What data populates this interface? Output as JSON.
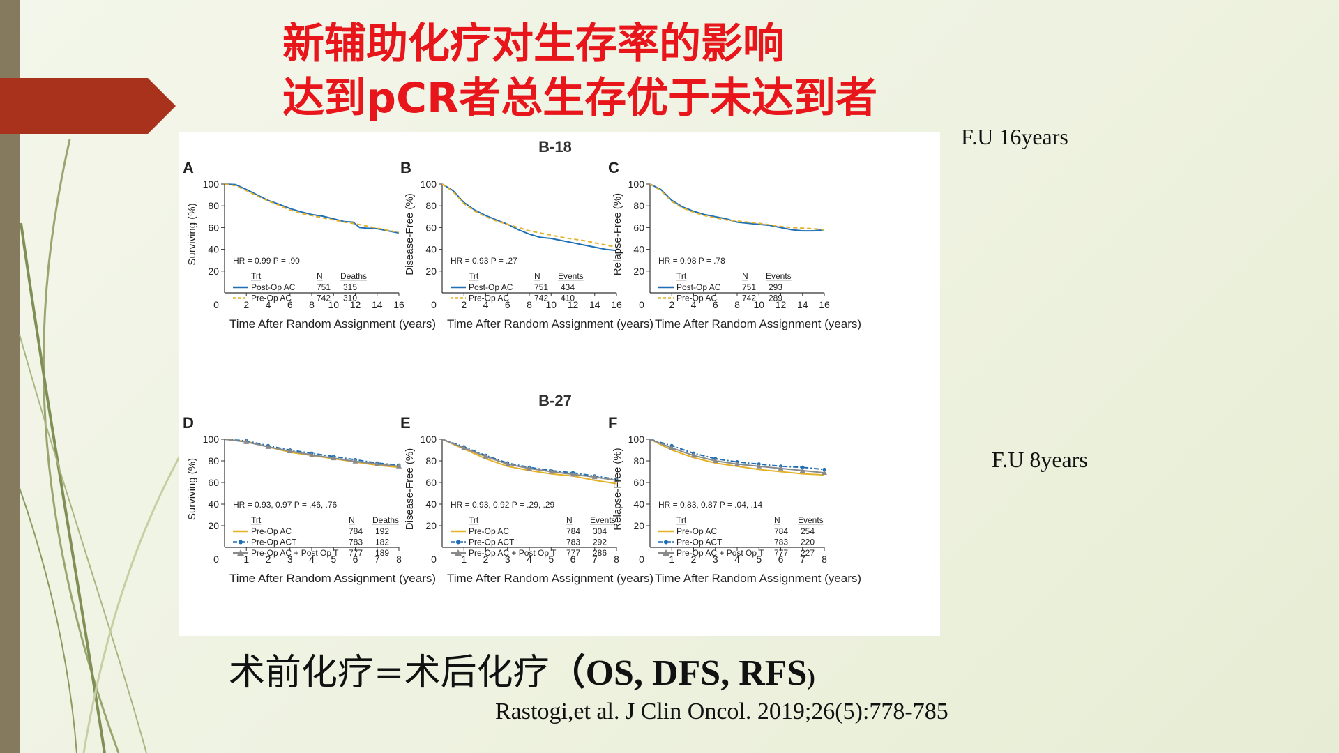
{
  "slide": {
    "title_line1": "新辅助化疗对生存率的影响",
    "title_line2": "达到pCR者总生存优于未达到者",
    "fu_16": "F.U  16years",
    "fu_8": "F.U  8years",
    "conclusion_cn": "术前化疗=术后化疗",
    "conclusion_open": "（",
    "conclusion_en": "OS, DFS, RFS",
    "conclusion_close": ")",
    "citation": "Rastogi,et al. J Clin Oncol. 2019;26(5):778-785"
  },
  "figure": {
    "trial_top": "B-18",
    "trial_bottom": "B-27"
  },
  "chart_data": [
    {
      "type": "line",
      "panel": "A",
      "trial": "B-18",
      "ylabel": "Surviving (%)",
      "xlabel": "Time After Random Assignment (years)",
      "xlim": [
        0,
        16
      ],
      "ylim": [
        0,
        100
      ],
      "xticks": [
        "0",
        "2",
        "4",
        "6",
        "8",
        "10",
        "12",
        "14",
        "16"
      ],
      "yticks": [
        "20",
        "40",
        "60",
        "80",
        "100"
      ],
      "stats": "HR = 0.99   P = .90",
      "legend": {
        "headers": [
          "Trt",
          "N",
          "Deaths"
        ],
        "rows": [
          [
            "Post-Op AC",
            "751",
            "315"
          ],
          [
            "Pre-Op AC",
            "742",
            "310"
          ]
        ]
      },
      "series": [
        {
          "name": "Post-Op AC",
          "color": "#1f6fb5",
          "style": "solid",
          "x": [
            0,
            1,
            2,
            3,
            4,
            5,
            6,
            7,
            8,
            9,
            10,
            11,
            11.8,
            12.4,
            13,
            14,
            15,
            16
          ],
          "y": [
            100,
            99.5,
            95,
            90,
            85,
            81.5,
            77.5,
            74.5,
            72,
            70.5,
            68,
            65.5,
            65,
            60,
            59.5,
            59,
            57,
            55
          ]
        },
        {
          "name": "Pre-Op AC",
          "color": "#e3b228",
          "style": "dashed",
          "x": [
            0,
            1,
            2,
            3,
            4,
            5,
            6,
            7,
            8,
            9,
            10,
            11,
            12,
            13,
            14,
            15,
            16
          ],
          "y": [
            100,
            98.5,
            94,
            89,
            84.5,
            80.5,
            76,
            73,
            71,
            69,
            67,
            65,
            63.5,
            61.5,
            59.5,
            57.5,
            55.5
          ]
        }
      ]
    },
    {
      "type": "line",
      "panel": "B",
      "trial": "B-18",
      "ylabel": "Disease-Free (%)",
      "xlabel": "Time After Random Assignment (years)",
      "xlim": [
        0,
        16
      ],
      "ylim": [
        0,
        100
      ],
      "xticks": [
        "0",
        "2",
        "4",
        "6",
        "8",
        "10",
        "12",
        "14",
        "16"
      ],
      "yticks": [
        "20",
        "40",
        "60",
        "80",
        "100"
      ],
      "stats": "HR = 0.93   P = .27",
      "legend": {
        "headers": [
          "Trt",
          "N",
          "Events"
        ],
        "rows": [
          [
            "Post-Op AC",
            "751",
            "434"
          ],
          [
            "Pre-Op AC",
            "742",
            "410"
          ]
        ]
      },
      "series": [
        {
          "name": "Post-Op AC",
          "color": "#1f6fb5",
          "style": "solid",
          "x": [
            0,
            1,
            2,
            3,
            4,
            5,
            6,
            7,
            8,
            9,
            10,
            11,
            12,
            13,
            14,
            15,
            16
          ],
          "y": [
            100,
            94,
            83,
            76,
            71,
            67,
            63,
            58,
            54,
            51,
            50,
            48,
            46,
            44,
            42,
            40,
            39
          ]
        },
        {
          "name": "Pre-Op AC",
          "color": "#e3b228",
          "style": "dashed",
          "x": [
            0,
            1,
            2,
            3,
            4,
            5,
            6,
            7,
            8,
            9,
            10,
            11,
            12,
            13,
            14,
            15,
            16
          ],
          "y": [
            100,
            93,
            82,
            75,
            70,
            66,
            63,
            60,
            57,
            55,
            53,
            51,
            49.5,
            48,
            46,
            44,
            42
          ]
        }
      ]
    },
    {
      "type": "line",
      "panel": "C",
      "trial": "B-18",
      "ylabel": "Relapse-Free (%)",
      "xlabel": "Time After Random Assignment (years)",
      "xlim": [
        0,
        16
      ],
      "ylim": [
        0,
        100
      ],
      "xticks": [
        "0",
        "2",
        "4",
        "6",
        "8",
        "10",
        "12",
        "14",
        "16"
      ],
      "yticks": [
        "20",
        "40",
        "60",
        "80",
        "100"
      ],
      "stats": "HR = 0.98   P = .78",
      "legend": {
        "headers": [
          "Trt",
          "N",
          "Events"
        ],
        "rows": [
          [
            "Post-Op AC",
            "751",
            "293"
          ],
          [
            "Pre-Op AC",
            "742",
            "289"
          ]
        ]
      },
      "series": [
        {
          "name": "Post-Op AC",
          "color": "#1f6fb5",
          "style": "solid",
          "x": [
            0,
            1,
            2,
            3,
            4,
            5,
            6,
            7,
            8,
            9,
            10,
            11,
            12,
            13,
            14,
            15,
            16
          ],
          "y": [
            100,
            95,
            85,
            79,
            75,
            72,
            70,
            68,
            65,
            64,
            63,
            62,
            60,
            58,
            57,
            57,
            58
          ]
        },
        {
          "name": "Pre-Op AC",
          "color": "#e3b228",
          "style": "dashed",
          "x": [
            0,
            1,
            2,
            3,
            4,
            5,
            6,
            7,
            8,
            9,
            10,
            11,
            12,
            13,
            14,
            15,
            16
          ],
          "y": [
            100,
            94,
            84,
            78,
            74,
            71,
            69,
            67,
            66,
            65,
            64,
            62.5,
            61,
            60,
            59.5,
            59,
            58
          ]
        }
      ]
    },
    {
      "type": "line",
      "panel": "D",
      "trial": "B-27",
      "ylabel": "Surviving (%)",
      "xlabel": "Time After Random Assignment (years)",
      "xlim": [
        0,
        8
      ],
      "ylim": [
        0,
        100
      ],
      "xticks": [
        "0",
        "1",
        "2",
        "3",
        "4",
        "5",
        "6",
        "7",
        "8"
      ],
      "yticks": [
        "20",
        "40",
        "60",
        "80",
        "100"
      ],
      "stats": "HR = 0.93, 0.97   P = .46, .76",
      "legend": {
        "headers": [
          "Trt",
          "N",
          "Deaths"
        ],
        "rows": [
          [
            "Pre-Op AC",
            "784",
            "192"
          ],
          [
            "Pre-Op ACT",
            "783",
            "182"
          ],
          [
            "Pre-Op AC + Post Op T",
            "777",
            "189"
          ]
        ]
      },
      "series": [
        {
          "name": "Pre-Op AC",
          "color": "#e3b228",
          "style": "solid",
          "x": [
            0,
            1,
            2,
            3,
            4,
            5,
            6,
            7,
            8
          ],
          "y": [
            100,
            98,
            93,
            88,
            85,
            82,
            79,
            76,
            74
          ]
        },
        {
          "name": "Pre-Op ACT",
          "color": "#1f6fb5",
          "style": "dashdot",
          "x": [
            0,
            1,
            2,
            3,
            4,
            5,
            6,
            7,
            8
          ],
          "y": [
            100,
            98.5,
            94,
            90,
            87,
            84,
            81,
            78,
            76
          ]
        },
        {
          "name": "Pre-Op AC + Post Op T",
          "color": "#8a8a8a",
          "style": "triangle",
          "x": [
            0,
            1,
            2,
            3,
            4,
            5,
            6,
            7,
            8
          ],
          "y": [
            100,
            97.5,
            93,
            89,
            85.5,
            82.5,
            79.5,
            77,
            75
          ]
        }
      ]
    },
    {
      "type": "line",
      "panel": "E",
      "trial": "B-27",
      "ylabel": "Disease-Free (%)",
      "xlabel": "Time After Random Assignment (years)",
      "xlim": [
        0,
        8
      ],
      "ylim": [
        0,
        100
      ],
      "xticks": [
        "0",
        "1",
        "2",
        "3",
        "4",
        "5",
        "6",
        "7",
        "8"
      ],
      "yticks": [
        "20",
        "40",
        "60",
        "80",
        "100"
      ],
      "stats": "HR = 0.93, 0.92   P = .29, .29",
      "legend": {
        "headers": [
          "Trt",
          "N",
          "Events"
        ],
        "rows": [
          [
            "Pre-Op AC",
            "784",
            "304"
          ],
          [
            "Pre-Op ACT",
            "783",
            "292"
          ],
          [
            "Pre-Op AC + Post Op T",
            "777",
            "286"
          ]
        ]
      },
      "series": [
        {
          "name": "Pre-Op AC",
          "color": "#e3b228",
          "style": "solid",
          "x": [
            0,
            1,
            2,
            3,
            4,
            5,
            6,
            7,
            8
          ],
          "y": [
            100,
            91,
            82,
            75,
            71,
            68,
            66,
            62,
            59
          ]
        },
        {
          "name": "Pre-Op ACT",
          "color": "#1f6fb5",
          "style": "dashdot",
          "x": [
            0,
            1,
            2,
            3,
            4,
            5,
            6,
            7,
            8
          ],
          "y": [
            100,
            93,
            85,
            78,
            74,
            71,
            69,
            66,
            63
          ]
        },
        {
          "name": "Pre-Op AC + Post Op T",
          "color": "#8a8a8a",
          "style": "triangle",
          "x": [
            0,
            1,
            2,
            3,
            4,
            5,
            6,
            7,
            8
          ],
          "y": [
            100,
            92,
            84,
            77,
            73,
            70,
            67.5,
            65,
            62
          ]
        }
      ]
    },
    {
      "type": "line",
      "panel": "F",
      "trial": "B-27",
      "ylabel": "Relapse-Free (%)",
      "xlabel": "Time After Random Assignment (years)",
      "xlim": [
        0,
        8
      ],
      "ylim": [
        0,
        100
      ],
      "xticks": [
        "0",
        "1",
        "2",
        "3",
        "4",
        "5",
        "6",
        "7",
        "8"
      ],
      "yticks": [
        "20",
        "40",
        "60",
        "80",
        "100"
      ],
      "stats": "HR = 0.83, 0.87   P = .04, .14",
      "legend": {
        "headers": [
          "Trt",
          "N",
          "Events"
        ],
        "rows": [
          [
            "Pre-Op AC",
            "784",
            "254"
          ],
          [
            "Pre-Op ACT",
            "783",
            "220"
          ],
          [
            "Pre-Op AC + Post Op T",
            "777",
            "227"
          ]
        ]
      },
      "series": [
        {
          "name": "Pre-Op AC",
          "color": "#e3b228",
          "style": "solid",
          "x": [
            0,
            1,
            2,
            3,
            4,
            5,
            6,
            7,
            8
          ],
          "y": [
            100,
            90,
            83,
            78,
            75,
            72,
            70,
            68,
            67
          ]
        },
        {
          "name": "Pre-Op ACT",
          "color": "#1f6fb5",
          "style": "dashdot",
          "x": [
            0,
            1,
            2,
            3,
            4,
            5,
            6,
            7,
            8
          ],
          "y": [
            100,
            94,
            87,
            82,
            79,
            77,
            75,
            74,
            72
          ]
        },
        {
          "name": "Pre-Op AC + Post Op T",
          "color": "#8a8a8a",
          "style": "triangle",
          "x": [
            0,
            1,
            2,
            3,
            4,
            5,
            6,
            7,
            8
          ],
          "y": [
            100,
            92,
            85,
            80,
            77,
            75,
            73,
            71,
            69
          ]
        }
      ]
    }
  ]
}
